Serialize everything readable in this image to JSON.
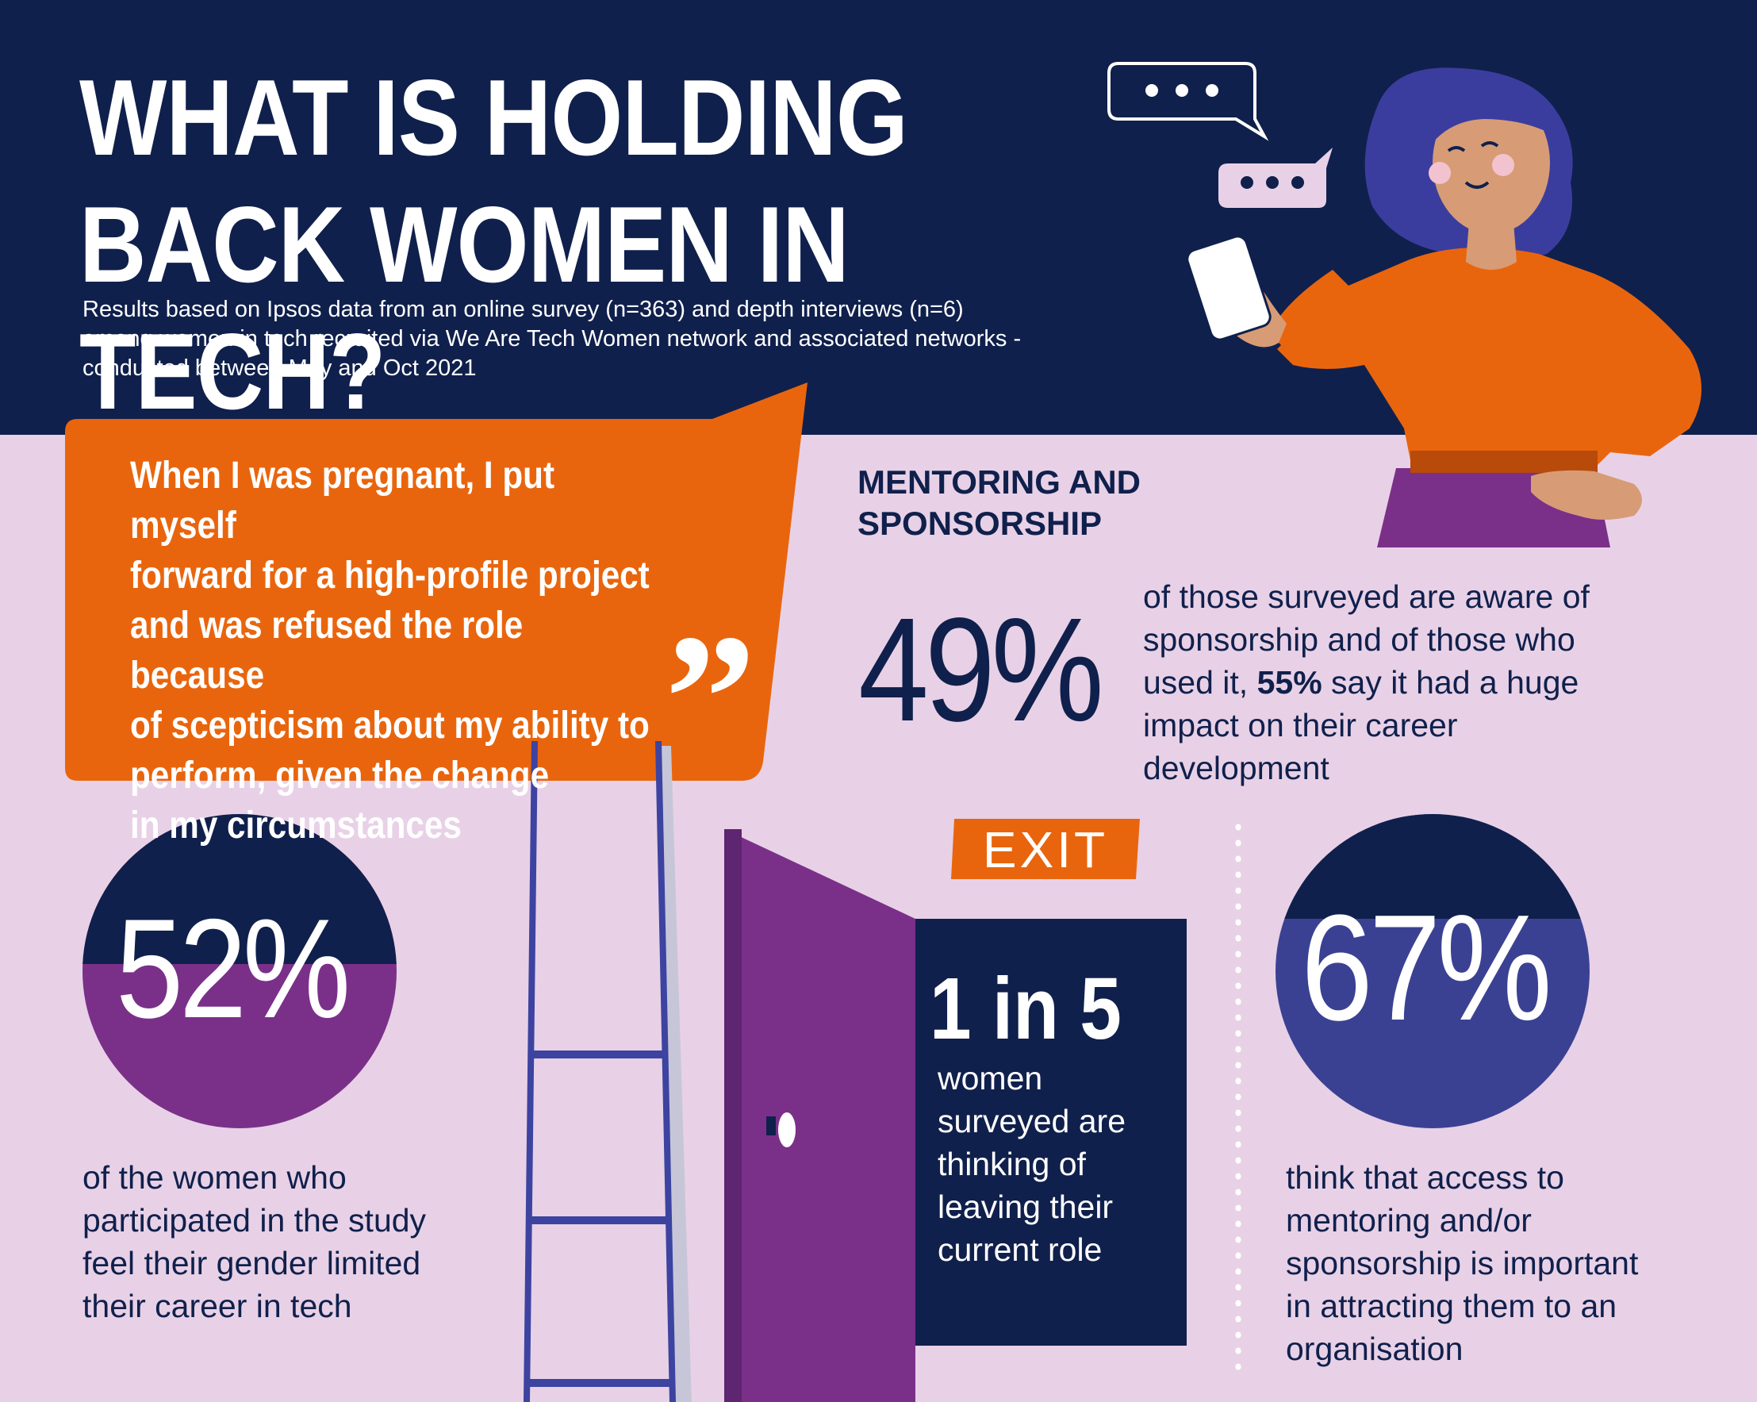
{
  "title": {
    "line1": "WHAT IS HOLDING",
    "line2": "BACK WOMEN IN TECH?"
  },
  "subtitle": {
    "line1": "Results based on Ipsos data from an online survey (n=363) and depth interviews (n=6)",
    "line2": "among women in tech recruited via We Are Tech Women network and associated networks -",
    "line3": "conducted between May and Oct 2021"
  },
  "quote": {
    "lines": [
      "When I was pregnant, I put myself",
      "forward for a high-profile project",
      "and was refused the role because",
      "of scepticism about my ability to",
      "perform, given the change",
      "in my circumstances"
    ],
    "mark": "”"
  },
  "mentoring": {
    "heading_line1": "MENTORING AND",
    "heading_line2": "SPONSORSHIP",
    "stat": "49%",
    "desc_line1": "of those surveyed are aware of",
    "desc_line2": "sponsorship and of those who",
    "desc_line3_pre": "used it, ",
    "desc_line3_bold": "55%",
    "desc_line3_post": " say it had a huge",
    "desc_line4": "impact on their career",
    "desc_line5": "development"
  },
  "gender": {
    "stat": "52%",
    "lines": [
      "of the women who",
      "participated in the study",
      "feel their gender limited",
      "their career in tech"
    ]
  },
  "leaving": {
    "exit_label": "EXIT",
    "stat": "1 in 5",
    "lines": [
      "women",
      "surveyed are",
      "thinking of",
      "leaving their",
      "current role"
    ]
  },
  "attracting": {
    "stat": "67%",
    "lines": [
      "think that access to",
      "mentoring and/or",
      "sponsorship is important",
      "in attracting them to an",
      "organisation"
    ]
  },
  "colors": {
    "navy": "#10204c",
    "pink_background": "#e8d1e6",
    "orange": "#e9650d",
    "purple": "#7a3089",
    "indigo": "#3b4192",
    "ladder_blue": "#3d43a0"
  },
  "icons": [
    "chat-bubble-icon",
    "typing-bubble-icon",
    "smartphone-icon",
    "quote-mark-icon",
    "ladder-icon",
    "exit-door-icon",
    "door-knob-icon"
  ]
}
